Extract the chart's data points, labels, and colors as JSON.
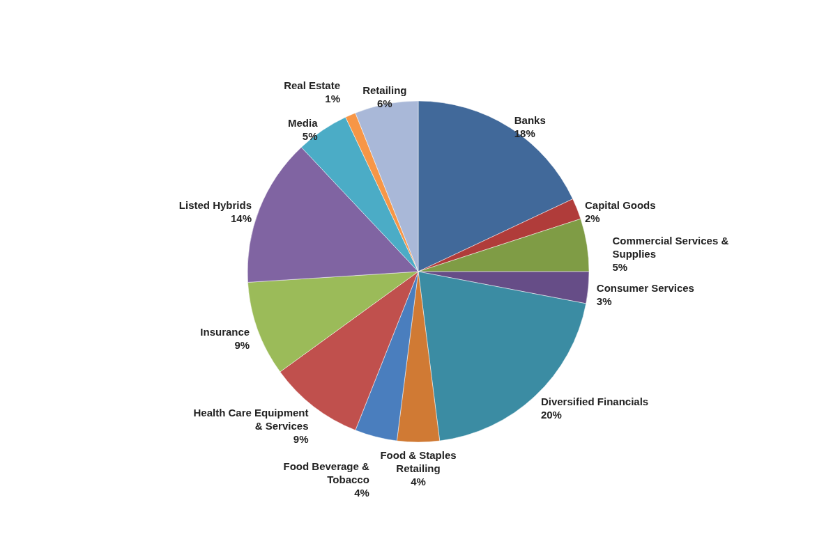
{
  "chart_data": {
    "type": "pie",
    "categories": [
      "Banks",
      "Capital Goods",
      "Commercial Services & Supplies",
      "Consumer Services",
      "Diversified Financials",
      "Food & Staples Retailing",
      "Food Beverage & Tobacco",
      "Health Care Equipment & Services",
      "Insurance",
      "Listed Hybrids",
      "Media",
      "Real Estate",
      "Retailing"
    ],
    "values": [
      18,
      2,
      5,
      3,
      20,
      4,
      4,
      9,
      9,
      14,
      5,
      1,
      6
    ],
    "value_labels": [
      "18%",
      "2%",
      "5%",
      "3%",
      "20%",
      "4%",
      "4%",
      "9%",
      "9%",
      "14%",
      "5%",
      "1%",
      "6%"
    ],
    "colors": [
      "#41699a",
      "#b03c3a",
      "#7f9c45",
      "#664d87",
      "#3b8ca3",
      "#d07a34",
      "#4a7ebe",
      "#c0504d",
      "#9bbb59",
      "#8064a2",
      "#4bacc6",
      "#f79646",
      "#a9b8d8"
    ]
  }
}
